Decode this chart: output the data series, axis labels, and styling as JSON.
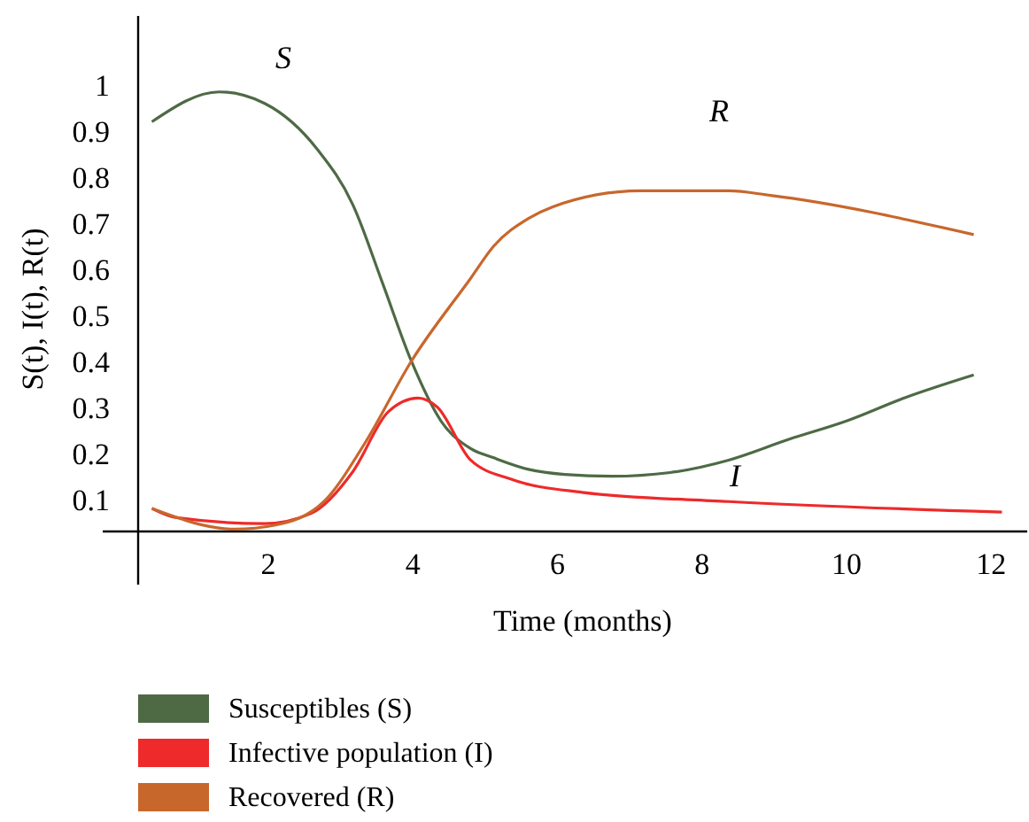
{
  "chart_data": {
    "type": "line",
    "xlabel": "Time (months)",
    "ylabel": "S(t), I(t), R(t)",
    "xlim": [
      0.2,
      12.5
    ],
    "ylim": [
      0.03,
      1.15
    ],
    "xticks": [
      2,
      4,
      6,
      8,
      10,
      12
    ],
    "yticks": [
      0.1,
      0.2,
      0.3,
      0.4,
      0.5,
      0.6,
      0.7,
      0.8,
      0.9,
      1
    ],
    "grid": false,
    "legend": "bottom",
    "marker": "none",
    "line_style": "solid",
    "series": [
      {
        "name": "Susceptibles (S)",
        "color": "#4e6a45",
        "x": [
          0.39,
          1.32,
          1.95,
          2.68,
          3.17,
          3.58,
          3.98,
          4.39,
          4.8,
          5.12,
          5.6,
          6.1,
          6.75,
          7.56,
          8.37,
          9.2,
          10,
          10.8,
          11.76
        ],
        "values": [
          0.92,
          0.985,
          0.96,
          0.86,
          0.74,
          0.57,
          0.4,
          0.27,
          0.21,
          0.19,
          0.165,
          0.154,
          0.15,
          0.158,
          0.185,
          0.23,
          0.27,
          0.32,
          0.37
        ]
      },
      {
        "name": "Infective population (I)",
        "color": "#ee2a2a",
        "x": [
          0.39,
          0.73,
          1.95,
          2.6,
          3.17,
          3.66,
          4.07,
          4.34,
          4.8,
          5.37,
          6.34,
          8.37,
          12.15
        ],
        "values": [
          0.08,
          0.06,
          0.047,
          0.07,
          0.16,
          0.29,
          0.32,
          0.3,
          0.185,
          0.143,
          0.115,
          0.095,
          0.072
        ]
      },
      {
        "name": "Recovered (R)",
        "color": "#c8672c",
        "x": [
          0.39,
          1.54,
          2.1,
          2.77,
          3.33,
          3.98,
          4.8,
          5.12,
          5.6,
          5.93,
          7.15,
          8.37,
          8.95,
          11.76
        ],
        "values": [
          0.08,
          0.035,
          0.044,
          0.095,
          0.22,
          0.4,
          0.58,
          0.65,
          0.71,
          0.735,
          0.77,
          0.77,
          0.76,
          0.675
        ]
      }
    ],
    "annotations": [
      "S",
      "R",
      "I"
    ]
  }
}
